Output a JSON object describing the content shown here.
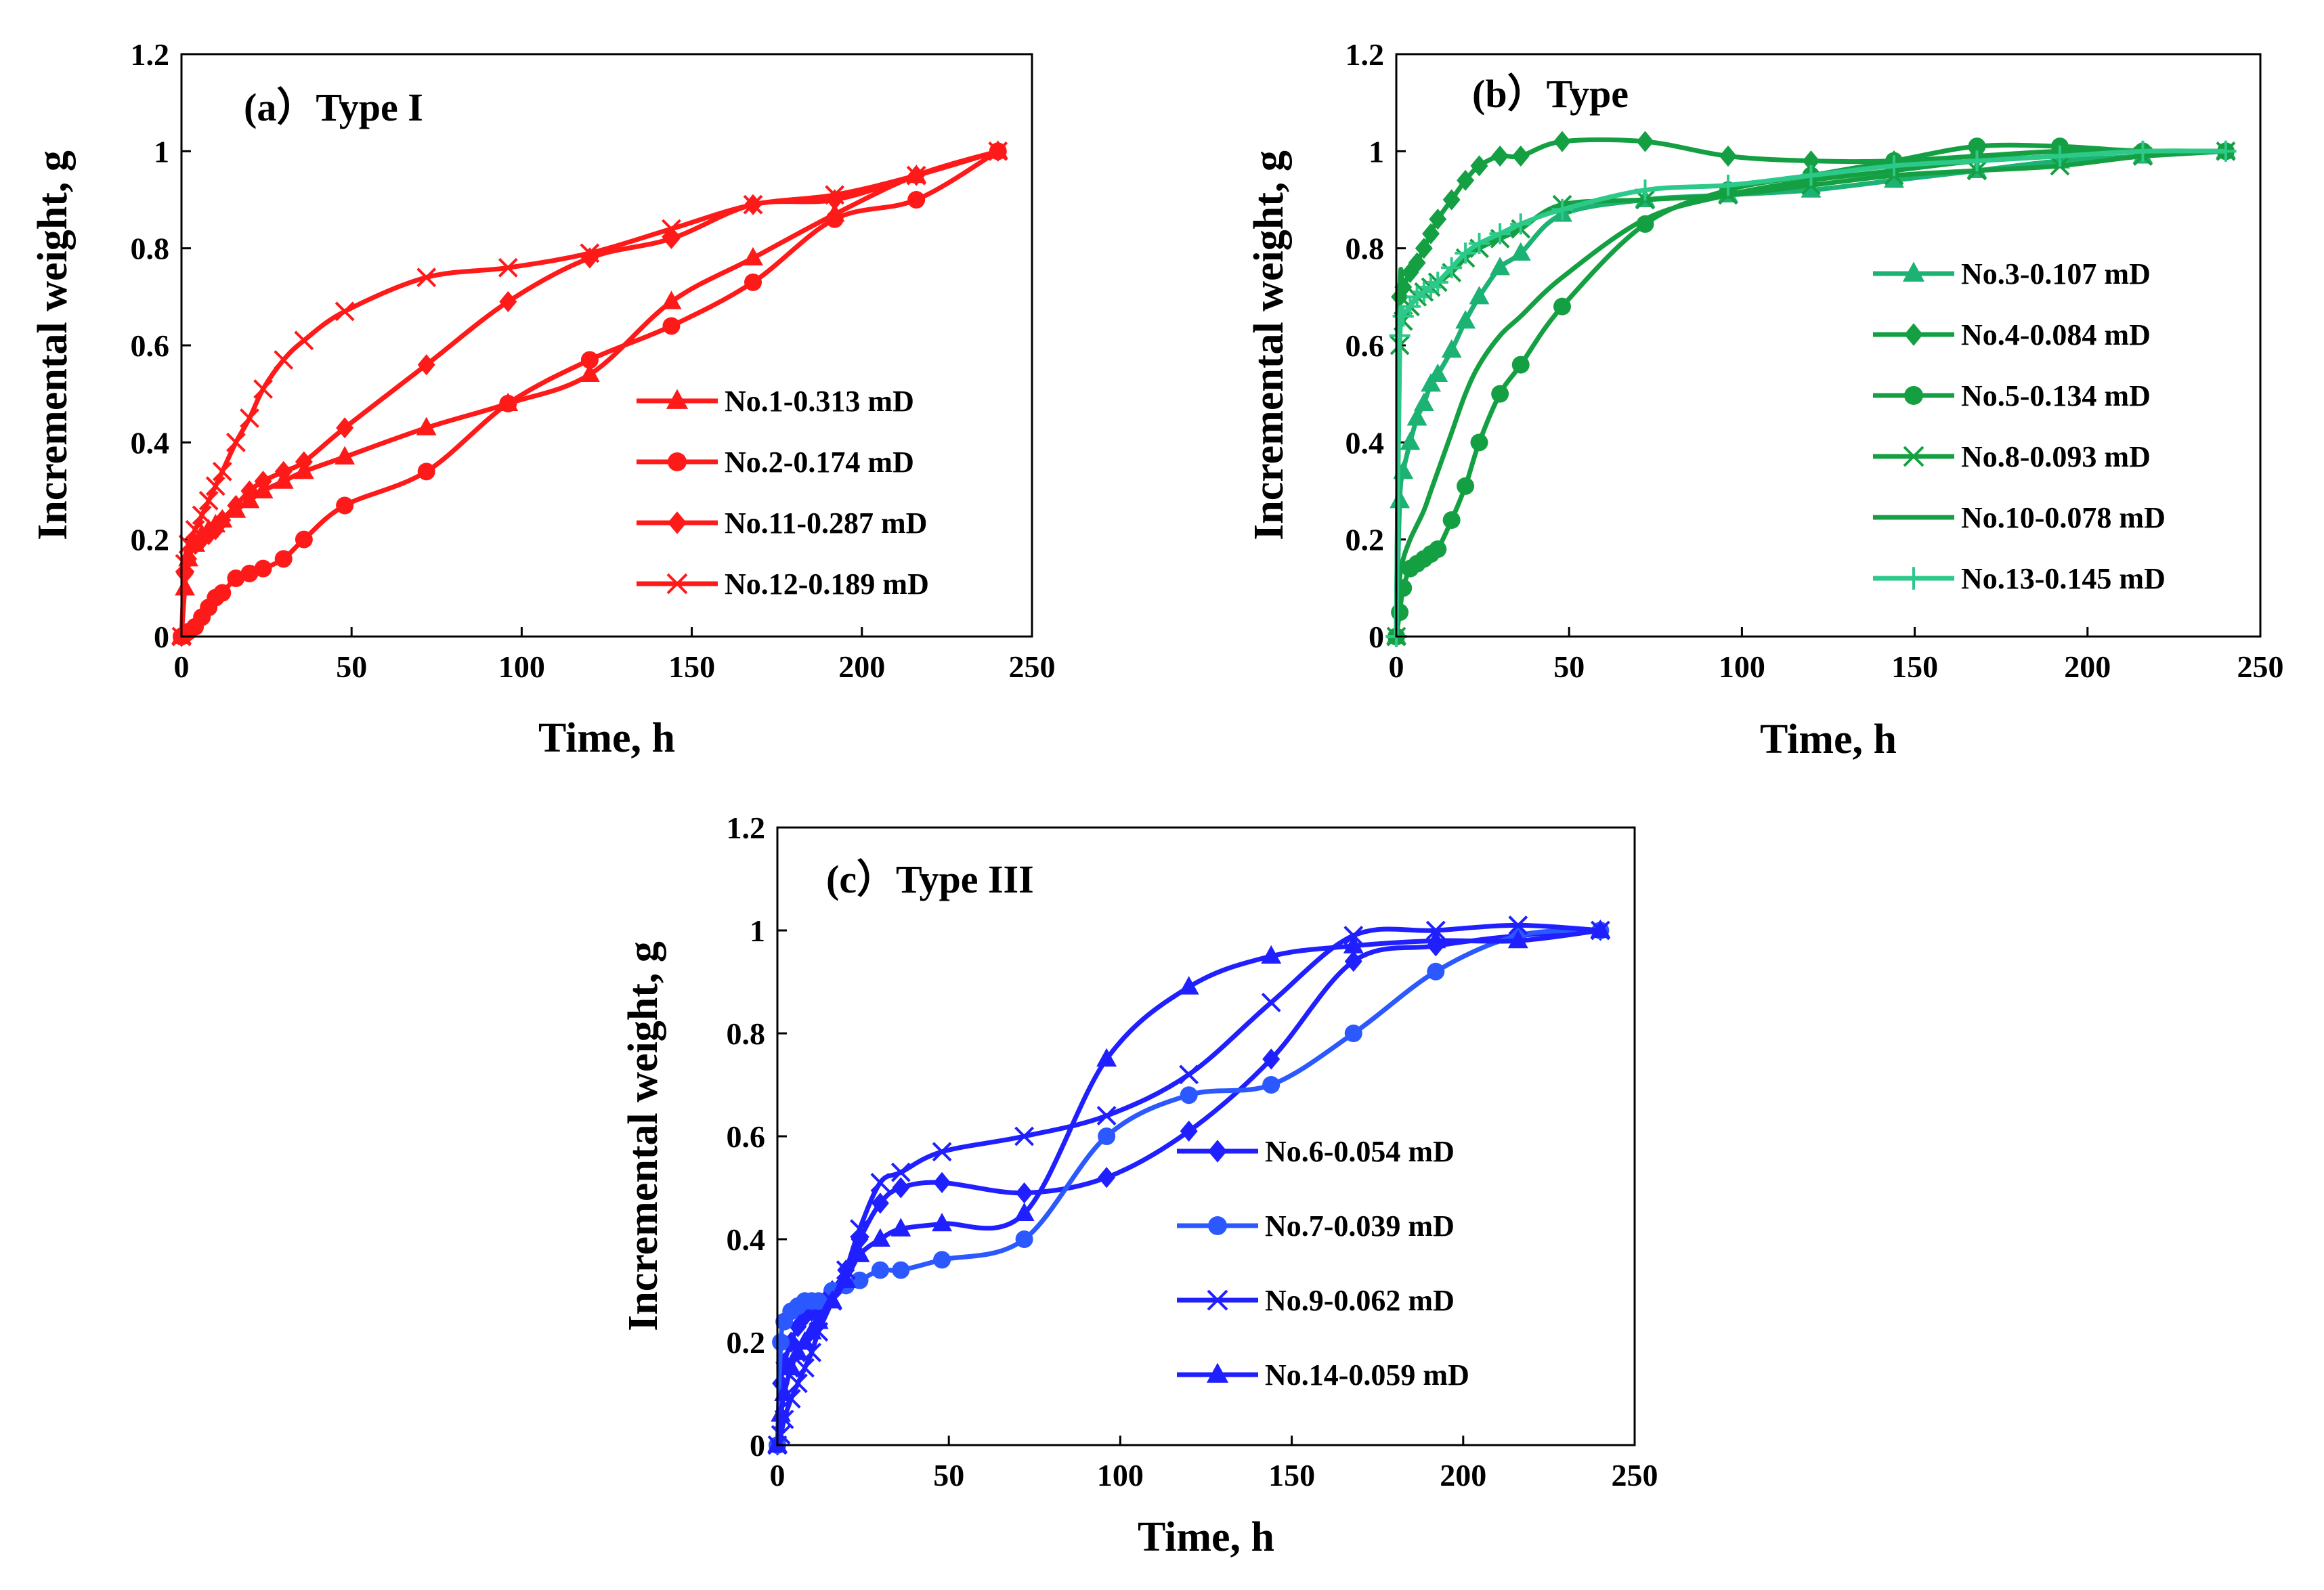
{
  "chart_data": [
    {
      "type": "line",
      "id": "a",
      "title": "(a）Type I",
      "xlabel": "Time,  h",
      "ylabel": "Incremental weight,  g",
      "xlim": [
        0,
        250
      ],
      "ylim": [
        0,
        1.2
      ],
      "xticks": [
        "0",
        "50",
        "100",
        "150",
        "200",
        "250"
      ],
      "yticks": [
        "0",
        "0.2",
        "0.4",
        "0.6",
        "0.8",
        "1",
        "1.2"
      ],
      "legend_position": "center-right",
      "series": [
        {
          "name": "No.1-0.313 mD",
          "color": "#ff1a1a",
          "marker": "triangle",
          "x": [
            0,
            1,
            2,
            4,
            6,
            8,
            10,
            12,
            16,
            20,
            24,
            30,
            36,
            48,
            72,
            96,
            120,
            144,
            168,
            192,
            216,
            240
          ],
          "y": [
            0,
            0.1,
            0.16,
            0.19,
            0.21,
            0.22,
            0.23,
            0.24,
            0.26,
            0.28,
            0.3,
            0.32,
            0.34,
            0.37,
            0.43,
            0.48,
            0.54,
            0.69,
            0.78,
            0.87,
            0.95,
            1.0
          ]
        },
        {
          "name": "No.2-0.174 mD",
          "color": "#ff1a1a",
          "marker": "circle",
          "x": [
            0,
            1,
            2,
            4,
            6,
            8,
            10,
            12,
            16,
            20,
            24,
            30,
            36,
            48,
            72,
            96,
            120,
            144,
            168,
            192,
            216,
            240
          ],
          "y": [
            0,
            0.005,
            0.01,
            0.02,
            0.04,
            0.06,
            0.08,
            0.09,
            0.12,
            0.13,
            0.14,
            0.16,
            0.2,
            0.27,
            0.34,
            0.48,
            0.57,
            0.64,
            0.73,
            0.86,
            0.9,
            1.0
          ]
        },
        {
          "name": "No.11-0.287 mD",
          "color": "#ff1a1a",
          "marker": "diamond",
          "x": [
            0,
            1,
            2,
            4,
            6,
            8,
            10,
            12,
            16,
            20,
            24,
            30,
            36,
            48,
            72,
            96,
            120,
            144,
            168,
            192,
            216,
            240
          ],
          "y": [
            0,
            0.13,
            0.16,
            0.19,
            0.2,
            0.21,
            0.22,
            0.24,
            0.27,
            0.3,
            0.32,
            0.34,
            0.36,
            0.43,
            0.56,
            0.69,
            0.78,
            0.82,
            0.89,
            0.9,
            0.95,
            1.0
          ]
        },
        {
          "name": "No.12-0.189 mD",
          "color": "#ff1a1a",
          "marker": "x",
          "x": [
            0,
            1,
            2,
            4,
            6,
            8,
            10,
            12,
            16,
            20,
            24,
            30,
            36,
            48,
            72,
            96,
            120,
            144,
            168,
            192,
            216,
            240
          ],
          "y": [
            0,
            0.15,
            0.19,
            0.22,
            0.25,
            0.28,
            0.31,
            0.34,
            0.4,
            0.45,
            0.51,
            0.57,
            0.61,
            0.67,
            0.74,
            0.76,
            0.79,
            0.84,
            0.89,
            0.91,
            0.95,
            1.0
          ]
        }
      ]
    },
    {
      "type": "line",
      "id": "b",
      "title": "(b）Type",
      "xlabel": "Time,  h",
      "ylabel": "Incremental weight,  g",
      "xlim": [
        0,
        250
      ],
      "ylim": [
        0,
        1.2
      ],
      "xticks": [
        "0",
        "50",
        "100",
        "150",
        "200",
        "250"
      ],
      "yticks": [
        "0",
        "0.2",
        "0.4",
        "0.6",
        "0.8",
        "1",
        "1.2"
      ],
      "legend_position": "center-right",
      "series": [
        {
          "name": "No.3-0.107 mD",
          "color": "#1cb273",
          "marker": "triangle",
          "x": [
            0,
            1,
            2,
            4,
            6,
            8,
            10,
            12,
            16,
            20,
            24,
            30,
            36,
            48,
            72,
            96,
            120,
            144,
            168,
            192,
            216,
            240
          ],
          "y": [
            0,
            0.28,
            0.34,
            0.4,
            0.45,
            0.48,
            0.52,
            0.54,
            0.59,
            0.65,
            0.7,
            0.76,
            0.79,
            0.87,
            0.9,
            0.91,
            0.92,
            0.94,
            0.96,
            0.98,
            0.99,
            1.0
          ]
        },
        {
          "name": "No.4-0.084 mD",
          "color": "#14a042",
          "marker": "diamond",
          "x": [
            0,
            1,
            2,
            4,
            6,
            8,
            10,
            12,
            16,
            20,
            24,
            30,
            36,
            48,
            72,
            96,
            120,
            144,
            168,
            192,
            216,
            240
          ],
          "y": [
            0,
            0.7,
            0.72,
            0.75,
            0.77,
            0.8,
            0.83,
            0.86,
            0.9,
            0.94,
            0.97,
            0.99,
            0.99,
            1.02,
            1.02,
            0.99,
            0.98,
            0.98,
            0.99,
            1.0,
            1.0,
            1.0
          ]
        },
        {
          "name": "No.5-0.134 mD",
          "color": "#14a042",
          "marker": "circle",
          "x": [
            0,
            1,
            2,
            4,
            6,
            8,
            10,
            12,
            16,
            20,
            24,
            30,
            36,
            48,
            72,
            96,
            120,
            144,
            168,
            192,
            216,
            240
          ],
          "y": [
            0,
            0.05,
            0.1,
            0.14,
            0.15,
            0.16,
            0.17,
            0.18,
            0.24,
            0.31,
            0.4,
            0.5,
            0.56,
            0.68,
            0.85,
            0.92,
            0.95,
            0.98,
            1.01,
            1.01,
            1.0,
            1.0
          ]
        },
        {
          "name": "No.8-0.093 mD",
          "color": "#14a042",
          "marker": "x",
          "x": [
            0,
            1,
            2,
            4,
            6,
            8,
            10,
            12,
            16,
            20,
            24,
            30,
            36,
            48,
            72,
            96,
            120,
            144,
            168,
            192,
            216,
            240
          ],
          "y": [
            0,
            0.6,
            0.65,
            0.68,
            0.7,
            0.71,
            0.72,
            0.73,
            0.75,
            0.78,
            0.8,
            0.82,
            0.84,
            0.89,
            0.9,
            0.91,
            0.93,
            0.95,
            0.96,
            0.97,
            0.99,
            1.0
          ]
        },
        {
          "name": "No.10-0.078 mD",
          "color": "#14a042",
          "marker": "none",
          "x": [
            0,
            1,
            2,
            4,
            6,
            8,
            10,
            12,
            16,
            20,
            24,
            30,
            36,
            48,
            72,
            96,
            120,
            144,
            168,
            192,
            216,
            240
          ],
          "y": [
            0,
            0.12,
            0.16,
            0.2,
            0.23,
            0.26,
            0.3,
            0.34,
            0.42,
            0.5,
            0.56,
            0.62,
            0.66,
            0.74,
            0.86,
            0.91,
            0.94,
            0.96,
            0.98,
            0.99,
            1.0,
            1.0
          ]
        },
        {
          "name": "No.13-0.145 mD",
          "color": "#2cc98a",
          "marker": "plus",
          "x": [
            0,
            1,
            2,
            4,
            6,
            8,
            10,
            12,
            16,
            20,
            24,
            30,
            36,
            48,
            72,
            96,
            120,
            144,
            168,
            192,
            216,
            240
          ],
          "y": [
            0,
            0.62,
            0.66,
            0.68,
            0.7,
            0.71,
            0.72,
            0.73,
            0.76,
            0.79,
            0.81,
            0.83,
            0.85,
            0.88,
            0.92,
            0.93,
            0.95,
            0.97,
            0.98,
            0.99,
            1.0,
            1.0
          ]
        }
      ]
    },
    {
      "type": "line",
      "id": "c",
      "title": "(c）Type III",
      "xlabel": "Time,  h",
      "ylabel": "Incremental weight,  g",
      "xlim": [
        0,
        250
      ],
      "ylim": [
        0,
        1.2
      ],
      "xticks": [
        "0",
        "50",
        "100",
        "150",
        "200",
        "250"
      ],
      "yticks": [
        "0",
        "0.2",
        "0.4",
        "0.6",
        "0.8",
        "1",
        "1.2"
      ],
      "legend_position": "bottom-right",
      "series": [
        {
          "name": "No.6-0.054 mD",
          "color": "#1f1fff",
          "marker": "diamond",
          "x": [
            0,
            1,
            2,
            4,
            6,
            8,
            10,
            12,
            16,
            20,
            24,
            30,
            36,
            48,
            72,
            96,
            120,
            144,
            168,
            192,
            216,
            240
          ],
          "y": [
            0,
            0.12,
            0.16,
            0.2,
            0.23,
            0.25,
            0.26,
            0.27,
            0.3,
            0.34,
            0.4,
            0.47,
            0.5,
            0.51,
            0.49,
            0.52,
            0.61,
            0.75,
            0.94,
            0.97,
            0.99,
            1.0
          ]
        },
        {
          "name": "No.7-0.039 mD",
          "color": "#2b58ff",
          "marker": "circle",
          "x": [
            0,
            1,
            2,
            4,
            6,
            8,
            10,
            12,
            16,
            20,
            24,
            30,
            36,
            48,
            72,
            96,
            120,
            144,
            168,
            192,
            216,
            240
          ],
          "y": [
            0,
            0.2,
            0.24,
            0.26,
            0.27,
            0.28,
            0.28,
            0.28,
            0.3,
            0.31,
            0.32,
            0.34,
            0.34,
            0.36,
            0.4,
            0.6,
            0.68,
            0.7,
            0.8,
            0.92,
            0.99,
            1.0
          ]
        },
        {
          "name": "No.9-0.062 mD",
          "color": "#1f1fff",
          "marker": "x",
          "x": [
            0,
            1,
            2,
            4,
            6,
            8,
            10,
            12,
            16,
            20,
            24,
            30,
            36,
            48,
            72,
            96,
            120,
            144,
            168,
            192,
            216,
            240
          ],
          "y": [
            0,
            0.02,
            0.05,
            0.09,
            0.12,
            0.15,
            0.18,
            0.22,
            0.28,
            0.34,
            0.42,
            0.51,
            0.53,
            0.57,
            0.6,
            0.64,
            0.72,
            0.86,
            0.99,
            1.0,
            1.01,
            1.0
          ]
        },
        {
          "name": "No.14-0.059 mD",
          "color": "#1f1fff",
          "marker": "triangle",
          "x": [
            0,
            1,
            2,
            4,
            6,
            8,
            10,
            12,
            16,
            20,
            24,
            30,
            36,
            48,
            72,
            96,
            120,
            144,
            168,
            192,
            216,
            240
          ],
          "y": [
            0,
            0.06,
            0.1,
            0.15,
            0.18,
            0.2,
            0.22,
            0.24,
            0.28,
            0.32,
            0.37,
            0.4,
            0.42,
            0.43,
            0.45,
            0.75,
            0.89,
            0.95,
            0.97,
            0.98,
            0.98,
            1.0
          ]
        }
      ]
    }
  ]
}
